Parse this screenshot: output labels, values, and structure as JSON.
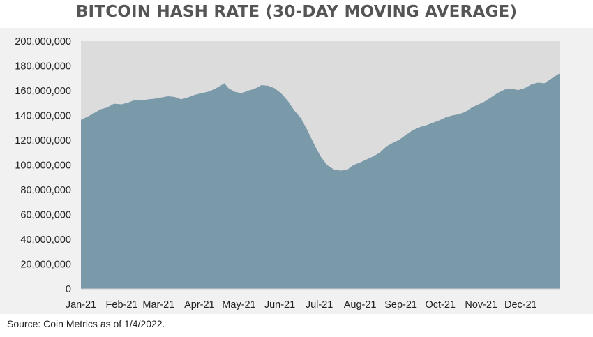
{
  "title": "BITCOIN HASH RATE (30-DAY MOVING AVERAGE)",
  "source": "Source: Coin Metrics as of 1/4/2022.",
  "colors": {
    "area": "#7a9aaa",
    "plot_bg": "#dcdcdc",
    "outer_bg": "#f1f1f1"
  },
  "chart_data": {
    "type": "area",
    "title": "BITCOIN HASH RATE (30-DAY MOVING AVERAGE)",
    "xlabel": "",
    "ylabel": "",
    "ylim": [
      0,
      200000000
    ],
    "grid": false,
    "yticks": [
      {
        "value": 0,
        "label": "0"
      },
      {
        "value": 20000000,
        "label": "20,000,000"
      },
      {
        "value": 40000000,
        "label": "40,000,000"
      },
      {
        "value": 60000000,
        "label": "60,000,000"
      },
      {
        "value": 80000000,
        "label": "80,000,000"
      },
      {
        "value": 100000000,
        "label": "100,000,000"
      },
      {
        "value": 120000000,
        "label": "120,000,000"
      },
      {
        "value": 140000000,
        "label": "140,000,000"
      },
      {
        "value": 160000000,
        "label": "160,000,000"
      },
      {
        "value": 180000000,
        "label": "180,000,000"
      },
      {
        "value": 200000000,
        "label": "200,000,000"
      }
    ],
    "xticks": [
      {
        "date": "2021-01-01",
        "label": "Jan-21"
      },
      {
        "date": "2021-02-01",
        "label": "Feb-21"
      },
      {
        "date": "2021-03-01",
        "label": "Mar-21"
      },
      {
        "date": "2021-04-01",
        "label": "Apr-21"
      },
      {
        "date": "2021-05-01",
        "label": "May-21"
      },
      {
        "date": "2021-06-01",
        "label": "Jun-21"
      },
      {
        "date": "2021-07-01",
        "label": "Jul-21"
      },
      {
        "date": "2021-08-01",
        "label": "Aug-21"
      },
      {
        "date": "2021-09-01",
        "label": "Sep-21"
      },
      {
        "date": "2021-10-01",
        "label": "Oct-21"
      },
      {
        "date": "2021-11-01",
        "label": "Nov-21"
      },
      {
        "date": "2021-12-01",
        "label": "Dec-21"
      }
    ],
    "xlim": [
      "2021-01-01",
      "2021-12-31"
    ],
    "series": [
      {
        "points": [
          [
            "2021-01-01",
            136500000
          ],
          [
            "2021-01-06",
            139000000
          ],
          [
            "2021-01-11",
            142000000
          ],
          [
            "2021-01-16",
            145000000
          ],
          [
            "2021-01-21",
            146500000
          ],
          [
            "2021-01-26",
            149500000
          ],
          [
            "2021-02-01",
            149000000
          ],
          [
            "2021-02-06",
            150500000
          ],
          [
            "2021-02-11",
            152500000
          ],
          [
            "2021-02-16",
            152000000
          ],
          [
            "2021-02-21",
            153000000
          ],
          [
            "2021-02-26",
            153500000
          ],
          [
            "2021-03-03",
            154500000
          ],
          [
            "2021-03-08",
            155500000
          ],
          [
            "2021-03-13",
            155000000
          ],
          [
            "2021-03-18",
            153000000
          ],
          [
            "2021-03-23",
            154500000
          ],
          [
            "2021-03-28",
            156500000
          ],
          [
            "2021-04-02",
            158000000
          ],
          [
            "2021-04-07",
            159000000
          ],
          [
            "2021-04-12",
            161000000
          ],
          [
            "2021-04-17",
            164000000
          ],
          [
            "2021-04-20",
            166000000
          ],
          [
            "2021-04-23",
            162000000
          ],
          [
            "2021-04-28",
            159000000
          ],
          [
            "2021-05-03",
            158000000
          ],
          [
            "2021-05-08",
            160000000
          ],
          [
            "2021-05-13",
            161500000
          ],
          [
            "2021-05-18",
            164500000
          ],
          [
            "2021-05-23",
            164000000
          ],
          [
            "2021-05-28",
            162000000
          ],
          [
            "2021-06-02",
            158000000
          ],
          [
            "2021-06-07",
            152000000
          ],
          [
            "2021-06-12",
            144000000
          ],
          [
            "2021-06-17",
            138000000
          ],
          [
            "2021-06-22",
            128000000
          ],
          [
            "2021-06-27",
            117000000
          ],
          [
            "2021-07-02",
            107000000
          ],
          [
            "2021-07-07",
            100000000
          ],
          [
            "2021-07-12",
            96500000
          ],
          [
            "2021-07-17",
            95500000
          ],
          [
            "2021-07-22",
            96000000
          ],
          [
            "2021-07-27",
            100000000
          ],
          [
            "2021-08-01",
            102000000
          ],
          [
            "2021-08-06",
            104500000
          ],
          [
            "2021-08-11",
            107000000
          ],
          [
            "2021-08-16",
            110000000
          ],
          [
            "2021-08-21",
            115000000
          ],
          [
            "2021-08-26",
            118000000
          ],
          [
            "2021-08-31",
            120500000
          ],
          [
            "2021-09-05",
            124500000
          ],
          [
            "2021-09-10",
            128000000
          ],
          [
            "2021-09-15",
            130500000
          ],
          [
            "2021-09-20",
            132000000
          ],
          [
            "2021-09-25",
            134000000
          ],
          [
            "2021-09-30",
            136000000
          ],
          [
            "2021-10-05",
            138500000
          ],
          [
            "2021-10-10",
            140000000
          ],
          [
            "2021-10-15",
            141000000
          ],
          [
            "2021-10-20",
            143000000
          ],
          [
            "2021-10-25",
            146500000
          ],
          [
            "2021-10-30",
            149000000
          ],
          [
            "2021-11-04",
            151500000
          ],
          [
            "2021-11-09",
            155000000
          ],
          [
            "2021-11-14",
            158500000
          ],
          [
            "2021-11-19",
            161000000
          ],
          [
            "2021-11-24",
            161500000
          ],
          [
            "2021-11-29",
            160500000
          ],
          [
            "2021-12-04",
            162000000
          ],
          [
            "2021-12-09",
            165000000
          ],
          [
            "2021-12-14",
            166500000
          ],
          [
            "2021-12-19",
            166000000
          ],
          [
            "2021-12-24",
            169500000
          ],
          [
            "2021-12-29",
            173000000
          ],
          [
            "2021-12-31",
            174000000
          ]
        ]
      }
    ]
  }
}
